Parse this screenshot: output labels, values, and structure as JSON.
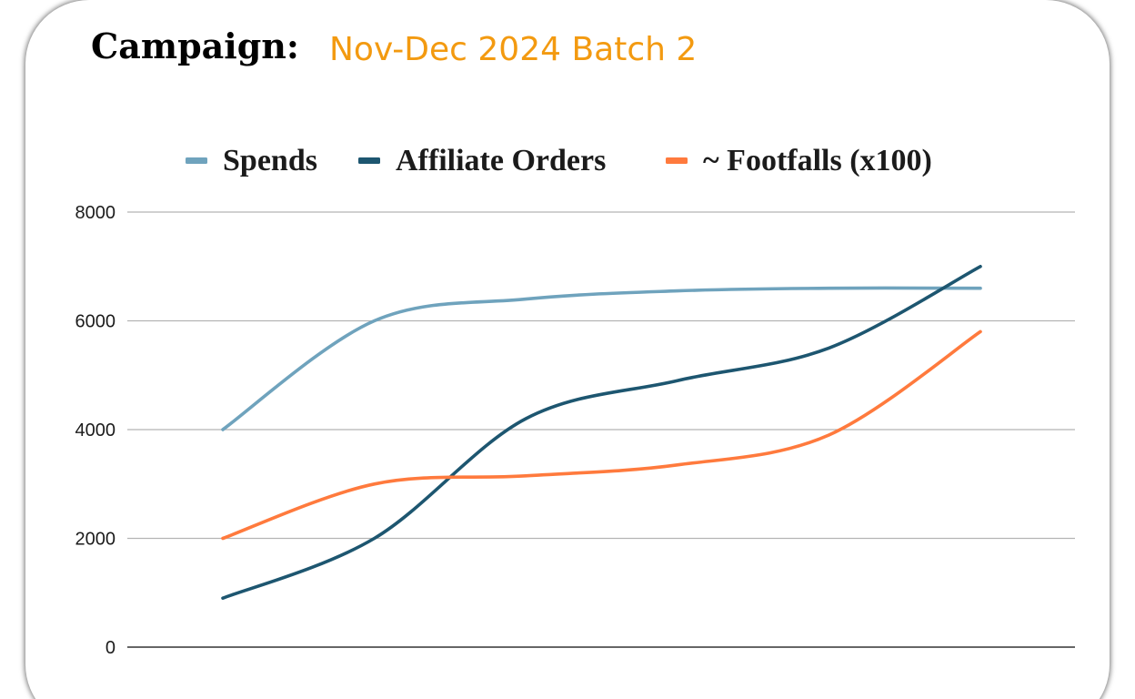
{
  "header": {
    "label": "Campaign:",
    "campaign_name": "Nov-Dec 2024 Batch 2"
  },
  "colors": {
    "campaign_name": "#f39a10",
    "gridline": "#b3b3b3",
    "baseline": "#333333"
  },
  "chart_data": {
    "type": "line",
    "title": "",
    "xlabel": "",
    "ylabel": "",
    "ylim": [
      0,
      8000
    ],
    "yticks": [
      "0",
      "2000",
      "4000",
      "6000",
      "8000"
    ],
    "grid": true,
    "smooth": true,
    "legend_position": "top-center",
    "x": [
      1,
      2,
      3,
      4,
      5,
      6
    ],
    "series": [
      {
        "name": "Spends",
        "color": "#6fa3bd",
        "values": [
          4000,
          6000,
          6400,
          6550,
          6600,
          6600
        ]
      },
      {
        "name": "Affiliate Orders",
        "color": "#1d5670",
        "values": [
          900,
          2000,
          4200,
          4900,
          5500,
          7000
        ]
      },
      {
        "name": "~ Footfalls (x100)",
        "color": "#ff7a3d",
        "values": [
          2000,
          3000,
          3150,
          3350,
          3900,
          5800
        ]
      }
    ]
  }
}
